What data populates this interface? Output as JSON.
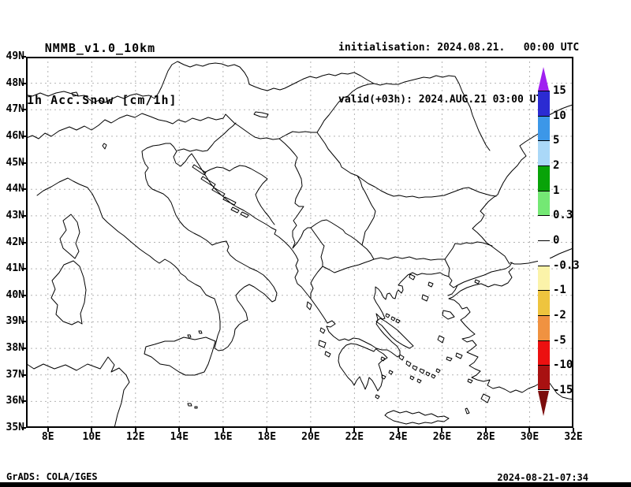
{
  "header": {
    "model": "NMMB_v1.0_10km",
    "field": "1h Acc.Snow [cm/1h]",
    "init_line": "initialisation: 2024.08.21.   00:00 UTC",
    "valid_line": "valid(+03h): 2024.AUG.21 03:00 UTC"
  },
  "axes": {
    "lat_labels": [
      "49N",
      "48N",
      "47N",
      "46N",
      "45N",
      "44N",
      "43N",
      "42N",
      "41N",
      "40N",
      "39N",
      "38N",
      "37N",
      "36N",
      "35N"
    ],
    "lon_labels": [
      "8E",
      "10E",
      "12E",
      "14E",
      "16E",
      "18E",
      "20E",
      "22E",
      "24E",
      "26E",
      "28E",
      "30E",
      "32E"
    ]
  },
  "colorbar": {
    "tick_labels": [
      "15",
      "10",
      "5",
      "2",
      "1",
      "0.3",
      "0",
      "-0.3",
      "-1",
      "-2",
      "-5",
      "-10",
      "-15"
    ],
    "segment_colors": [
      "#2b2bd2",
      "#3c97e8",
      "#aad8f8",
      "#08a308",
      "#74e874",
      "#ffffff",
      "#ffffff",
      "#fbf3a9",
      "#eec43e",
      "#f09241",
      "#ec1010",
      "#a81111"
    ],
    "arrow_up_color": "#a020f0",
    "arrow_down_color": "#7c0d0d",
    "grid_color": "#b3b3b3",
    "line_color": "#000000"
  },
  "footer": {
    "credit": "GrADS: COLA/IGES",
    "timestamp": "2024-08-21-07:34"
  }
}
